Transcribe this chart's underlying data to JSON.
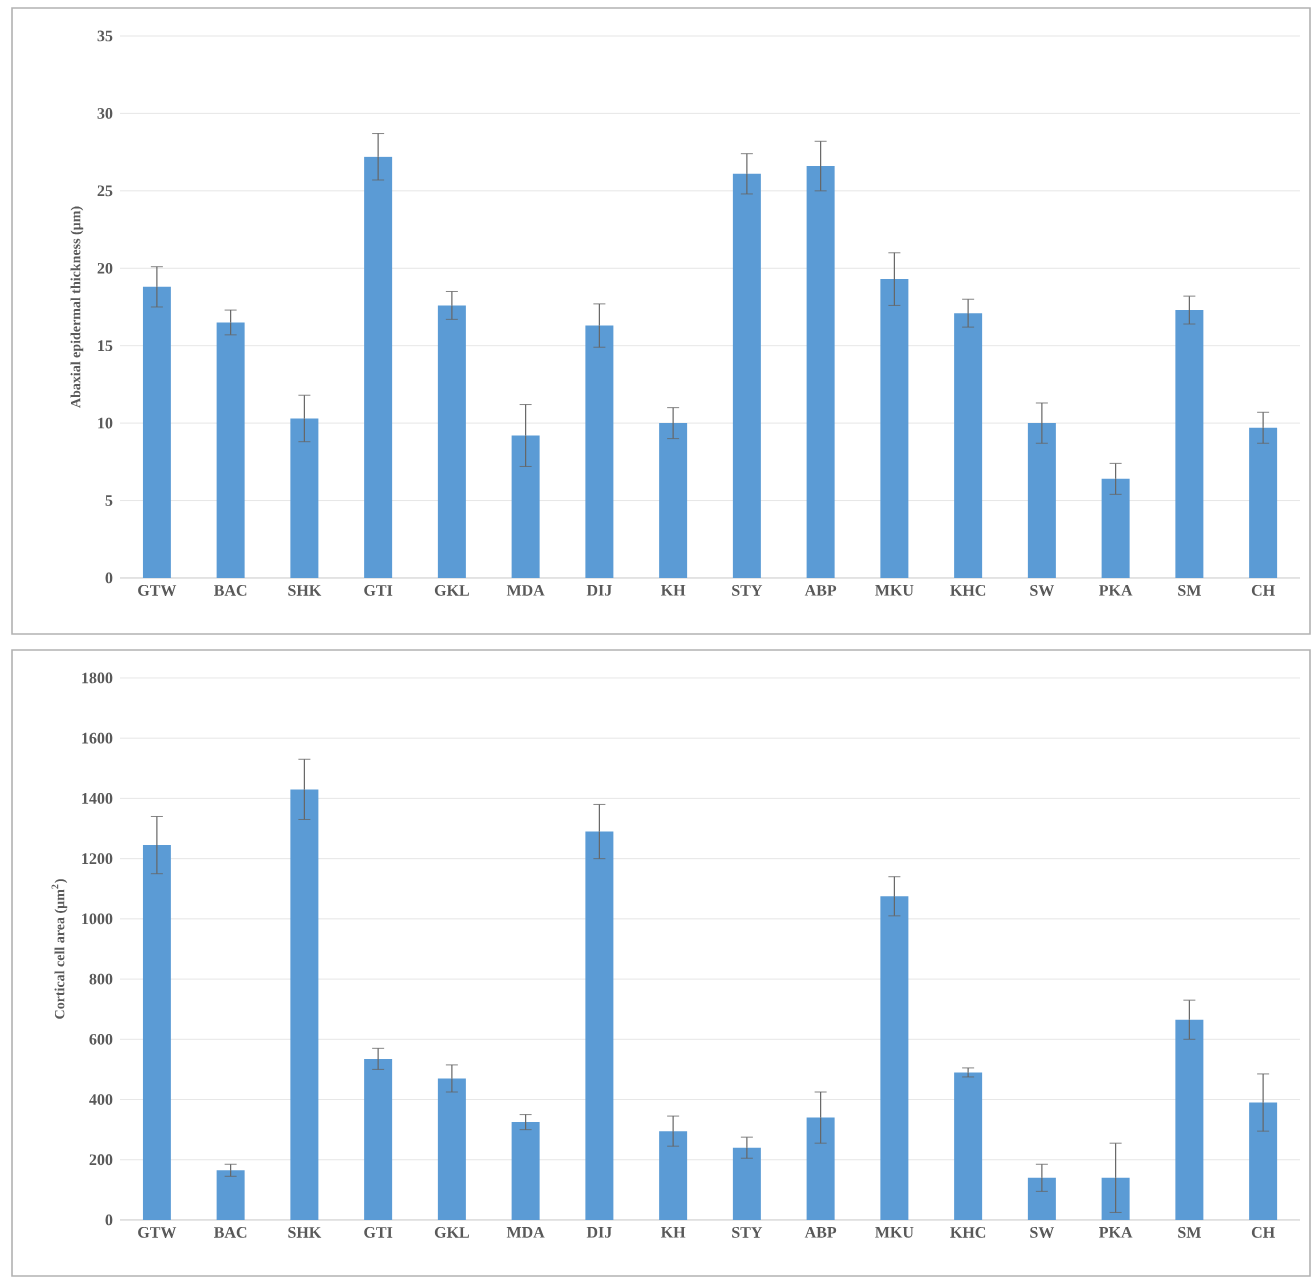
{
  "chart_data": [
    {
      "type": "bar",
      "ylabel": "Abaxial  epidermal thickness (µm)",
      "categories": [
        "GTW",
        "BAC",
        "SHK",
        "GTI",
        "GKL",
        "MDA",
        "DIJ",
        "KH",
        "STY",
        "ABP",
        "MKU",
        "KHC",
        "SW",
        "PKA",
        "SM",
        "CH"
      ],
      "values": [
        18.8,
        16.5,
        10.3,
        27.2,
        17.6,
        9.2,
        16.3,
        10.0,
        26.1,
        26.6,
        19.3,
        17.1,
        10.0,
        6.4,
        17.3,
        9.7
      ],
      "errors": [
        1.3,
        0.8,
        1.5,
        1.5,
        0.9,
        2.0,
        1.4,
        1.0,
        1.3,
        1.6,
        1.7,
        0.9,
        1.3,
        1.0,
        0.9,
        1.0
      ],
      "color": "#5b9bd5",
      "ylim": [
        0,
        35
      ],
      "yticks": [
        0,
        5,
        10,
        15,
        20,
        25,
        30,
        35
      ],
      "grid": "y"
    },
    {
      "type": "bar",
      "ylabel": "Cortical cell area (µm$^{2}$)",
      "categories": [
        "GTW",
        "BAC",
        "SHK",
        "GTI",
        "GKL",
        "MDA",
        "DIJ",
        "KH",
        "STY",
        "ABP",
        "MKU",
        "KHC",
        "SW",
        "PKA",
        "SM",
        "CH"
      ],
      "values": [
        1245,
        165,
        1430,
        535,
        470,
        325,
        1290,
        295,
        240,
        340,
        1075,
        490,
        140,
        140,
        665,
        390
      ],
      "errors": [
        95,
        20,
        100,
        35,
        45,
        25,
        90,
        50,
        35,
        85,
        65,
        15,
        45,
        115,
        65,
        95
      ],
      "color": "#5b9bd5",
      "ylim": [
        0,
        1800
      ],
      "yticks": [
        0,
        200,
        400,
        600,
        800,
        1000,
        1200,
        1400,
        1600,
        1800
      ],
      "grid": "y"
    }
  ]
}
